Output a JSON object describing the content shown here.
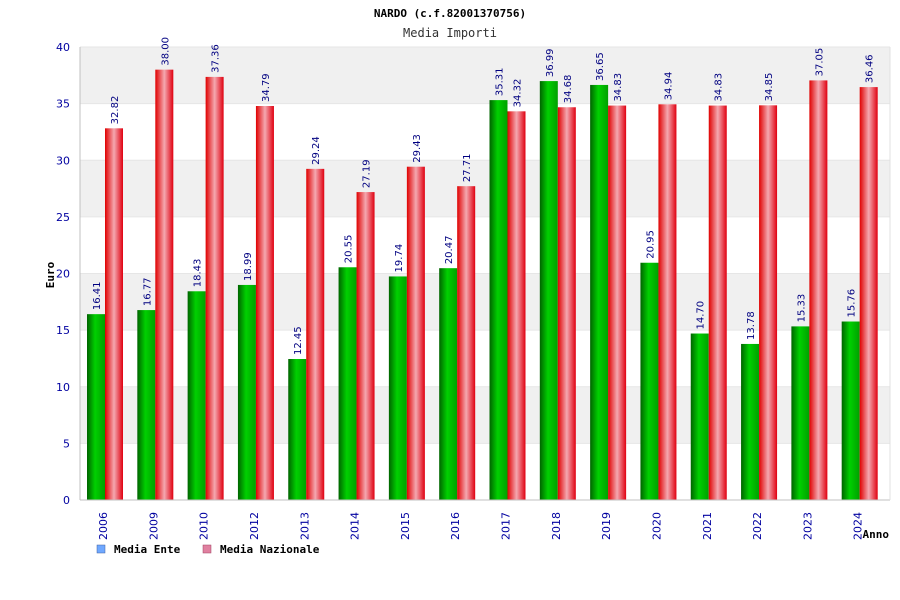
{
  "chart_data": {
    "type": "bar",
    "title": "NARDO (c.f.82001370756)",
    "subtitle": "Media Importi",
    "xlabel": "Anno",
    "ylabel": "Euro",
    "ylim": [
      0,
      40
    ],
    "yticks": [
      "0",
      "5",
      "10",
      "15",
      "20",
      "25",
      "30",
      "35",
      "40"
    ],
    "grid": true,
    "legend_position": "bottom-left",
    "categories": [
      "2006",
      "2009",
      "2010",
      "2012",
      "2013",
      "2014",
      "2015",
      "2016",
      "2017",
      "2018",
      "2019",
      "2020",
      "2021",
      "2022",
      "2023",
      "2024"
    ],
    "series": [
      {
        "name": "Media Ente",
        "values": [
          16.41,
          16.77,
          18.43,
          18.99,
          12.45,
          20.55,
          19.74,
          20.47,
          35.31,
          36.99,
          36.65,
          20.95,
          14.7,
          13.78,
          15.33,
          15.76
        ],
        "labels": [
          "16.41",
          "16.77",
          "18.43",
          "18.99",
          "12.45",
          "20.55",
          "19.74",
          "20.47",
          "35.31",
          "36.99",
          "36.65",
          "20.95",
          "14.70",
          "13.78",
          "15.33",
          "15.76"
        ]
      },
      {
        "name": "Media Nazionale",
        "values": [
          32.82,
          38.0,
          37.36,
          34.79,
          29.24,
          27.19,
          29.43,
          27.71,
          34.32,
          34.68,
          34.83,
          34.94,
          34.83,
          34.85,
          37.05,
          36.46
        ],
        "labels": [
          "32.82",
          "38.00",
          "37.36",
          "34.79",
          "29.24",
          "27.19",
          "29.43",
          "27.71",
          "34.32",
          "34.68",
          "34.83",
          "34.94",
          "34.83",
          "34.85",
          "37.05",
          "36.46"
        ]
      }
    ]
  },
  "colors": {
    "ente": "#00c000",
    "ente_dark": "#008000",
    "nazionale": "#ff2020",
    "nazionale_light": "#f0a0a8",
    "legend_ente": "#6fa8ff",
    "legend_nazionale": "#e080a0",
    "value_text": "#000080",
    "axis_text": "#0000a0",
    "band": "#f0f0f0"
  }
}
